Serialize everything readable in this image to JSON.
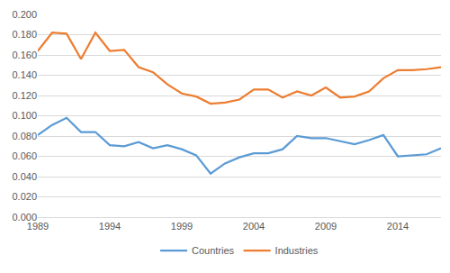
{
  "chart_data": {
    "type": "line",
    "x": [
      1989,
      1990,
      1991,
      1992,
      1993,
      1994,
      1995,
      1996,
      1997,
      1998,
      1999,
      2000,
      2001,
      2002,
      2003,
      2004,
      2005,
      2006,
      2007,
      2008,
      2009,
      2010,
      2011,
      2012,
      2013,
      2014,
      2015,
      2016,
      2017
    ],
    "series": [
      {
        "name": "Countries",
        "color": "#5b9bd5",
        "values": [
          0.081,
          0.091,
          0.098,
          0.084,
          0.084,
          0.071,
          0.07,
          0.074,
          0.068,
          0.071,
          0.067,
          0.061,
          0.043,
          0.053,
          0.059,
          0.063,
          0.063,
          0.067,
          0.08,
          0.078,
          0.078,
          0.075,
          0.072,
          0.076,
          0.081,
          0.06,
          0.061,
          0.062,
          0.068
        ]
      },
      {
        "name": "Industries",
        "color": "#ed7d31",
        "values": [
          0.164,
          0.182,
          0.181,
          0.156,
          0.182,
          0.164,
          0.165,
          0.148,
          0.143,
          0.131,
          0.122,
          0.119,
          0.112,
          0.113,
          0.116,
          0.126,
          0.126,
          0.118,
          0.124,
          0.12,
          0.128,
          0.118,
          0.119,
          0.124,
          0.137,
          0.145,
          0.145,
          0.146,
          0.148
        ]
      }
    ],
    "xlim": [
      1989,
      2017
    ],
    "xticks": [
      1989,
      1994,
      1999,
      2004,
      2009,
      2014
    ],
    "ylim": [
      0,
      0.2
    ],
    "yticks": [
      {
        "value": 0,
        "label": "0.000"
      },
      {
        "value": 0.02,
        "label": "0.020"
      },
      {
        "value": 0.04,
        "label": "0.040"
      },
      {
        "value": 0.06,
        "label": "0.060"
      },
      {
        "value": 0.08,
        "label": "0.080"
      },
      {
        "value": 0.1,
        "label": "0.100"
      },
      {
        "value": 0.12,
        "label": "0.120"
      },
      {
        "value": 0.14,
        "label": "0.140"
      },
      {
        "value": 0.16,
        "label": "0.160"
      },
      {
        "value": 0.18,
        "label": "0.180"
      },
      {
        "value": 0.2,
        "label": "0.200"
      }
    ],
    "grid": true,
    "legend": "bottom"
  }
}
